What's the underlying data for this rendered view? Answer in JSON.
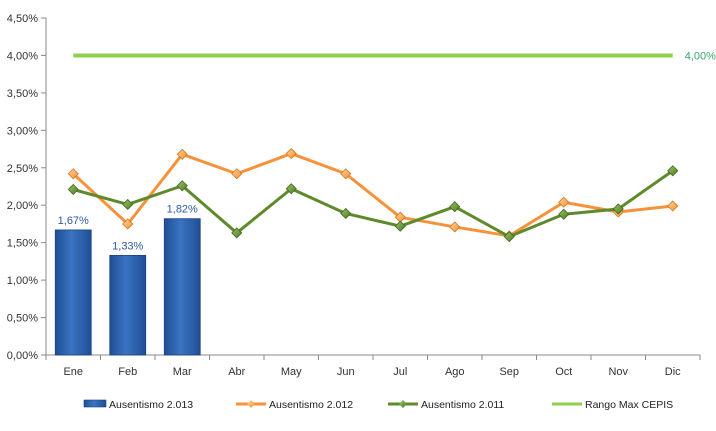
{
  "chart_data": {
    "type": "bar",
    "categories": [
      "Ene",
      "Feb",
      "Mar",
      "Abr",
      "May",
      "Jun",
      "Jul",
      "Ago",
      "Sep",
      "Oct",
      "Nov",
      "Dic"
    ],
    "y_ticks": [
      "0,00%",
      "0,50%",
      "1,00%",
      "1,50%",
      "2,00%",
      "2,50%",
      "3,00%",
      "3,50%",
      "4,00%",
      "4,50%"
    ],
    "ylim": [
      0,
      4.5
    ],
    "grid": false,
    "legend_position": "bottom",
    "series": [
      {
        "name": "Ausentismo 2.013",
        "kind": "bar",
        "color": "#2e62ad",
        "values": [
          1.67,
          1.33,
          1.82,
          null,
          null,
          null,
          null,
          null,
          null,
          null,
          null,
          null
        ],
        "labels": [
          "1,67%",
          "1,33%",
          "1,82%"
        ]
      },
      {
        "name": "Ausentismo 2.012",
        "kind": "line",
        "color": "#f7923a",
        "marker": "diamond",
        "values": [
          2.42,
          1.75,
          2.68,
          2.42,
          2.69,
          2.42,
          1.84,
          1.71,
          1.59,
          2.04,
          1.91,
          1.99
        ]
      },
      {
        "name": "Ausentismo 2.011",
        "kind": "line",
        "color": "#5e8a2c",
        "marker": "diamond",
        "values": [
          2.21,
          2.01,
          2.26,
          1.63,
          2.22,
          1.89,
          1.72,
          1.98,
          1.58,
          1.88,
          1.95,
          2.46
        ]
      },
      {
        "name": "Rango Max CEPIS",
        "kind": "line",
        "color": "#8fd14f",
        "marker": "none",
        "values": [
          4,
          4,
          4,
          4,
          4,
          4,
          4,
          4,
          4,
          4,
          4,
          4
        ],
        "end_label": "4,00%",
        "end_label_color": "#3aa56f"
      }
    ]
  }
}
